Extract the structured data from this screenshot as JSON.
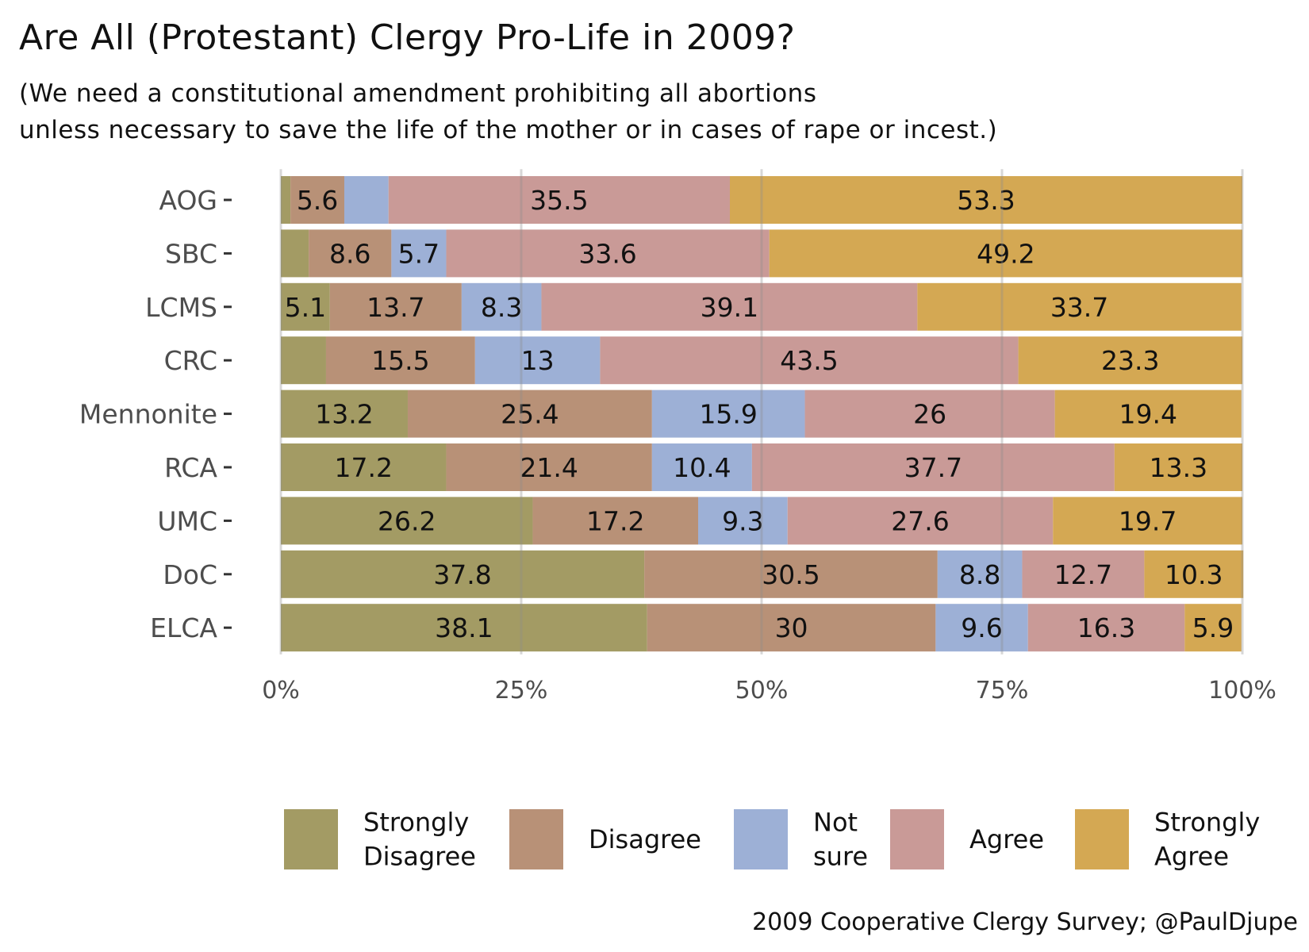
{
  "chart_data": {
    "type": "bar",
    "orientation": "horizontal",
    "stacked": "percent",
    "title": "Are All (Protestant) Clergy Pro-Life in 2009?",
    "subtitle": [
      "(We need a constitutional amendment prohibiting all abortions",
      "unless necessary to save the life of the mother or in cases of rape or incest.)"
    ],
    "caption": "2009 Cooperative Clergy Survey; @PaulDjupe",
    "categories": [
      "AOG",
      "SBC",
      "LCMS",
      "CRC",
      "Mennonite",
      "RCA",
      "UMC",
      "DoC",
      "ELCA"
    ],
    "series": [
      {
        "name": "Strongly Disagree",
        "legend_lines": [
          "Strongly",
          "Disagree"
        ],
        "color": "#a39b64",
        "values": [
          1.0,
          2.9,
          5.1,
          4.7,
          13.2,
          17.2,
          26.2,
          37.8,
          38.1
        ]
      },
      {
        "name": "Disagree",
        "legend_lines": [
          "Disagree"
        ],
        "color": "#b89177",
        "values": [
          5.6,
          8.6,
          13.7,
          15.5,
          25.4,
          21.4,
          17.2,
          30.5,
          30
        ]
      },
      {
        "name": "Not sure",
        "legend_lines": [
          "Not",
          "sure"
        ],
        "color": "#9db0d6",
        "values": [
          4.6,
          5.7,
          8.3,
          13,
          15.9,
          10.4,
          9.3,
          8.8,
          9.6
        ]
      },
      {
        "name": "Agree",
        "legend_lines": [
          "Agree"
        ],
        "color": "#c99a97",
        "values": [
          35.5,
          33.6,
          39.1,
          43.5,
          26,
          37.7,
          27.6,
          12.7,
          16.3
        ]
      },
      {
        "name": "Strongly Agree",
        "legend_lines": [
          "Strongly",
          "Agree"
        ],
        "color": "#d4a853",
        "values": [
          53.3,
          49.2,
          33.7,
          23.3,
          19.4,
          13.3,
          19.7,
          10.3,
          5.9
        ]
      }
    ],
    "data_labels_min": 5,
    "xlim": [
      0,
      100
    ],
    "xticks": [
      "0%",
      "25%",
      "50%",
      "75%",
      "100%"
    ],
    "grid": true,
    "legend_position": "bottom"
  }
}
